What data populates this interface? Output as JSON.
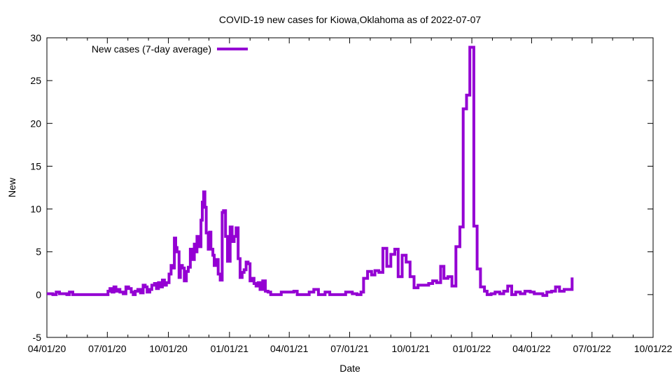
{
  "chart_data": {
    "type": "line",
    "title": "COVID-19 new cases for Kiowa,Oklahoma as of 2022-07-07",
    "xlabel": "Date",
    "ylabel": "New",
    "xlim": [
      "2020-04-01",
      "2022-10-01"
    ],
    "ylim": [
      -5,
      30
    ],
    "x_ticks": [
      "04/01/20",
      "07/01/20",
      "10/01/20",
      "01/01/21",
      "04/01/21",
      "07/01/21",
      "10/01/21",
      "01/01/22",
      "04/01/22",
      "07/01/22",
      "10/01/22"
    ],
    "y_ticks": [
      -5,
      0,
      5,
      10,
      15,
      20,
      25,
      30
    ],
    "legend_position": "top-left",
    "grid": false,
    "series": [
      {
        "name": "New cases (7-day average)",
        "color": "#9400d3",
        "points": [
          [
            "2020-04-01",
            0.1
          ],
          [
            "2020-04-06",
            0.1
          ],
          [
            "2020-04-10",
            0.0
          ],
          [
            "2020-04-15",
            0.3
          ],
          [
            "2020-04-20",
            0.1
          ],
          [
            "2020-04-25",
            0.1
          ],
          [
            "2020-05-01",
            0.0
          ],
          [
            "2020-05-05",
            0.3
          ],
          [
            "2020-05-10",
            0.0
          ],
          [
            "2020-05-15",
            0.0
          ],
          [
            "2020-05-20",
            0.0
          ],
          [
            "2020-06-01",
            0.0
          ],
          [
            "2020-06-15",
            0.0
          ],
          [
            "2020-06-28",
            0.0
          ],
          [
            "2020-07-02",
            0.4
          ],
          [
            "2020-07-05",
            0.7
          ],
          [
            "2020-07-08",
            0.3
          ],
          [
            "2020-07-11",
            0.9
          ],
          [
            "2020-07-14",
            0.4
          ],
          [
            "2020-07-17",
            0.6
          ],
          [
            "2020-07-20",
            0.3
          ],
          [
            "2020-07-25",
            0.1
          ],
          [
            "2020-07-29",
            0.9
          ],
          [
            "2020-08-02",
            0.7
          ],
          [
            "2020-08-06",
            0.3
          ],
          [
            "2020-08-09",
            0.0
          ],
          [
            "2020-08-12",
            0.4
          ],
          [
            "2020-08-16",
            0.6
          ],
          [
            "2020-08-20",
            0.2
          ],
          [
            "2020-08-24",
            1.1
          ],
          [
            "2020-08-27",
            0.9
          ],
          [
            "2020-08-30",
            0.3
          ],
          [
            "2020-09-03",
            0.6
          ],
          [
            "2020-09-06",
            1.1
          ],
          [
            "2020-09-10",
            1.3
          ],
          [
            "2020-09-13",
            0.7
          ],
          [
            "2020-09-16",
            1.4
          ],
          [
            "2020-09-19",
            0.9
          ],
          [
            "2020-09-22",
            1.7
          ],
          [
            "2020-09-25",
            1.1
          ],
          [
            "2020-09-28",
            1.4
          ],
          [
            "2020-10-02",
            2.4
          ],
          [
            "2020-10-05",
            3.4
          ],
          [
            "2020-10-08",
            3.1
          ],
          [
            "2020-10-10",
            6.6
          ],
          [
            "2020-10-12",
            5.5
          ],
          [
            "2020-10-14",
            5.0
          ],
          [
            "2020-10-17",
            2.0
          ],
          [
            "2020-10-19",
            3.4
          ],
          [
            "2020-10-22",
            3.1
          ],
          [
            "2020-10-25",
            1.6
          ],
          [
            "2020-10-28",
            2.7
          ],
          [
            "2020-10-31",
            3.2
          ],
          [
            "2020-11-03",
            5.3
          ],
          [
            "2020-11-06",
            4.1
          ],
          [
            "2020-11-09",
            5.9
          ],
          [
            "2020-11-11",
            5.0
          ],
          [
            "2020-11-13",
            6.8
          ],
          [
            "2020-11-16",
            5.6
          ],
          [
            "2020-11-19",
            8.7
          ],
          [
            "2020-11-21",
            10.8
          ],
          [
            "2020-11-23",
            12.0
          ],
          [
            "2020-11-25",
            10.2
          ],
          [
            "2020-11-27",
            7.2
          ],
          [
            "2020-11-30",
            5.3
          ],
          [
            "2020-12-02",
            7.3
          ],
          [
            "2020-12-04",
            5.3
          ],
          [
            "2020-12-07",
            4.6
          ],
          [
            "2020-12-09",
            3.4
          ],
          [
            "2020-12-12",
            4.1
          ],
          [
            "2020-12-15",
            2.4
          ],
          [
            "2020-12-18",
            1.7
          ],
          [
            "2020-12-21",
            9.6
          ],
          [
            "2020-12-23",
            9.8
          ],
          [
            "2020-12-26",
            6.8
          ],
          [
            "2020-12-29",
            3.9
          ],
          [
            "2021-01-02",
            7.9
          ],
          [
            "2021-01-05",
            6.2
          ],
          [
            "2021-01-08",
            6.8
          ],
          [
            "2021-01-11",
            7.8
          ],
          [
            "2021-01-14",
            4.2
          ],
          [
            "2021-01-17",
            2.0
          ],
          [
            "2021-01-20",
            2.6
          ],
          [
            "2021-01-23",
            2.9
          ],
          [
            "2021-01-26",
            3.8
          ],
          [
            "2021-01-29",
            3.6
          ],
          [
            "2021-02-01",
            1.6
          ],
          [
            "2021-02-04",
            1.9
          ],
          [
            "2021-02-07",
            1.3
          ],
          [
            "2021-02-10",
            1.0
          ],
          [
            "2021-02-13",
            1.4
          ],
          [
            "2021-02-16",
            0.6
          ],
          [
            "2021-02-20",
            1.6
          ],
          [
            "2021-02-24",
            0.4
          ],
          [
            "2021-02-28",
            0.3
          ],
          [
            "2021-03-04",
            0.0
          ],
          [
            "2021-03-10",
            0.0
          ],
          [
            "2021-03-20",
            0.3
          ],
          [
            "2021-03-30",
            0.3
          ],
          [
            "2021-04-08",
            0.4
          ],
          [
            "2021-04-13",
            0.0
          ],
          [
            "2021-04-20",
            0.0
          ],
          [
            "2021-05-01",
            0.3
          ],
          [
            "2021-05-08",
            0.6
          ],
          [
            "2021-05-15",
            0.0
          ],
          [
            "2021-05-25",
            0.3
          ],
          [
            "2021-06-01",
            0.0
          ],
          [
            "2021-06-15",
            0.0
          ],
          [
            "2021-06-25",
            0.3
          ],
          [
            "2021-07-05",
            0.1
          ],
          [
            "2021-07-12",
            0.0
          ],
          [
            "2021-07-18",
            0.3
          ],
          [
            "2021-07-22",
            1.9
          ],
          [
            "2021-07-28",
            2.7
          ],
          [
            "2021-08-03",
            2.3
          ],
          [
            "2021-08-08",
            2.8
          ],
          [
            "2021-08-14",
            2.6
          ],
          [
            "2021-08-20",
            5.4
          ],
          [
            "2021-08-26",
            3.3
          ],
          [
            "2021-09-01",
            4.7
          ],
          [
            "2021-09-07",
            5.3
          ],
          [
            "2021-09-12",
            2.1
          ],
          [
            "2021-09-18",
            4.6
          ],
          [
            "2021-09-24",
            3.8
          ],
          [
            "2021-09-30",
            2.1
          ],
          [
            "2021-10-06",
            0.8
          ],
          [
            "2021-10-12",
            1.1
          ],
          [
            "2021-10-20",
            1.1
          ],
          [
            "2021-10-28",
            1.3
          ],
          [
            "2021-11-03",
            1.6
          ],
          [
            "2021-11-09",
            1.4
          ],
          [
            "2021-11-15",
            3.3
          ],
          [
            "2021-11-20",
            1.9
          ],
          [
            "2021-11-26",
            2.1
          ],
          [
            "2021-12-02",
            1.0
          ],
          [
            "2021-12-08",
            5.6
          ],
          [
            "2021-12-14",
            7.9
          ],
          [
            "2021-12-19",
            21.7
          ],
          [
            "2021-12-24",
            23.3
          ],
          [
            "2021-12-29",
            28.9
          ],
          [
            "2022-01-04",
            8.0
          ],
          [
            "2022-01-09",
            3.0
          ],
          [
            "2022-01-14",
            0.9
          ],
          [
            "2022-01-20",
            0.4
          ],
          [
            "2022-01-24",
            0.0
          ],
          [
            "2022-01-30",
            0.1
          ],
          [
            "2022-02-05",
            0.3
          ],
          [
            "2022-02-12",
            0.1
          ],
          [
            "2022-02-18",
            0.4
          ],
          [
            "2022-02-24",
            1.0
          ],
          [
            "2022-03-02",
            0.0
          ],
          [
            "2022-03-08",
            0.3
          ],
          [
            "2022-03-15",
            0.1
          ],
          [
            "2022-03-22",
            0.4
          ],
          [
            "2022-03-30",
            0.3
          ],
          [
            "2022-04-05",
            0.1
          ],
          [
            "2022-04-12",
            0.1
          ],
          [
            "2022-04-18",
            -0.1
          ],
          [
            "2022-04-24",
            0.3
          ],
          [
            "2022-05-01",
            0.4
          ],
          [
            "2022-05-07",
            0.9
          ],
          [
            "2022-05-13",
            0.4
          ],
          [
            "2022-05-20",
            0.6
          ],
          [
            "2022-05-26",
            0.6
          ],
          [
            "2022-06-01",
            2.0
          ]
        ]
      }
    ]
  }
}
